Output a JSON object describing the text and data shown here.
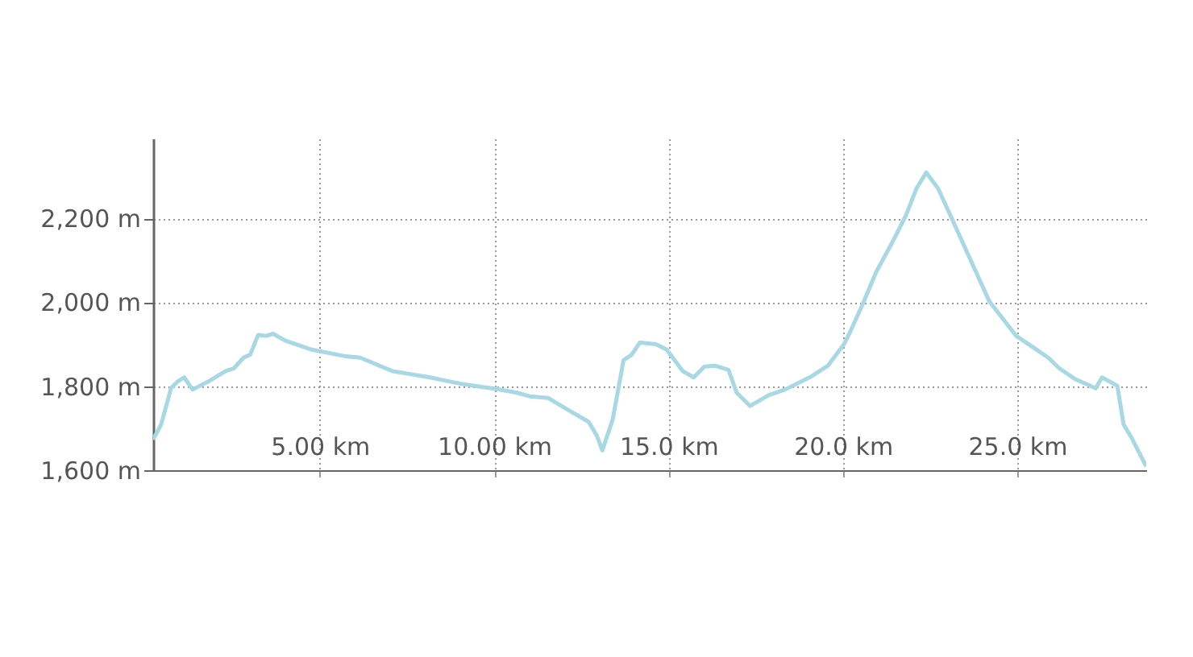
{
  "chart_data": {
    "type": "line",
    "x": [
      0.22,
      0.45,
      0.73,
      0.92,
      1.11,
      1.35,
      1.84,
      2.3,
      2.54,
      2.81,
      3.0,
      3.23,
      3.46,
      3.66,
      4.0,
      4.77,
      5.69,
      6.16,
      7.08,
      8.16,
      9.09,
      10.01,
      10.63,
      11.01,
      11.55,
      12.17,
      12.71,
      12.94,
      13.1,
      13.4,
      13.71,
      13.94,
      14.18,
      14.64,
      14.95,
      15.41,
      15.72,
      16.03,
      16.33,
      16.72,
      16.95,
      17.34,
      17.88,
      18.34,
      19.11,
      19.57,
      20.03,
      20.19,
      20.57,
      20.96,
      21.42,
      21.81,
      22.11,
      22.39,
      22.73,
      23.12,
      23.43,
      24.2,
      24.5,
      24.97,
      25.43,
      25.89,
      26.2,
      26.66,
      27.25,
      27.43,
      27.87,
      28.05,
      28.28,
      28.7
    ],
    "series": [
      {
        "color": "#a8d8e4",
        "values": [
          1673,
          1709,
          1795,
          1811,
          1821,
          1792,
          1813,
          1836,
          1843,
          1868,
          1875,
          1922,
          1920,
          1925,
          1909,
          1887,
          1872,
          1868,
          1836,
          1821,
          1805,
          1794,
          1785,
          1776,
          1772,
          1741,
          1715,
          1683,
          1647,
          1721,
          1862,
          1875,
          1904,
          1900,
          1887,
          1836,
          1821,
          1847,
          1849,
          1839,
          1785,
          1753,
          1779,
          1792,
          1824,
          1849,
          1900,
          1926,
          1996,
          2073,
          2143,
          2207,
          2271,
          2309,
          2271,
          2200,
          2143,
          2002,
          1970,
          1920,
          1894,
          1868,
          1843,
          1817,
          1795,
          1821,
          1801,
          1709,
          1677,
          1609
        ]
      }
    ],
    "xlim": [
      0.22,
      28.7
    ],
    "ylim": [
      1600,
      2390
    ],
    "xticks": [
      {
        "value": 5,
        "label": "5.00 km"
      },
      {
        "value": 10,
        "label": "10.00 km"
      },
      {
        "value": 15,
        "label": "15.0 km"
      },
      {
        "value": 20,
        "label": "20.0 km"
      },
      {
        "value": 25,
        "label": "25.0 km"
      }
    ],
    "yticks": [
      {
        "value": 1600,
        "label": "1,600 m"
      },
      {
        "value": 1800,
        "label": "1,800 m"
      },
      {
        "value": 2000,
        "label": "2,000 m"
      },
      {
        "value": 2200,
        "label": "2,200 m"
      }
    ],
    "grid": true,
    "marker": "none",
    "line_style": "solid"
  }
}
